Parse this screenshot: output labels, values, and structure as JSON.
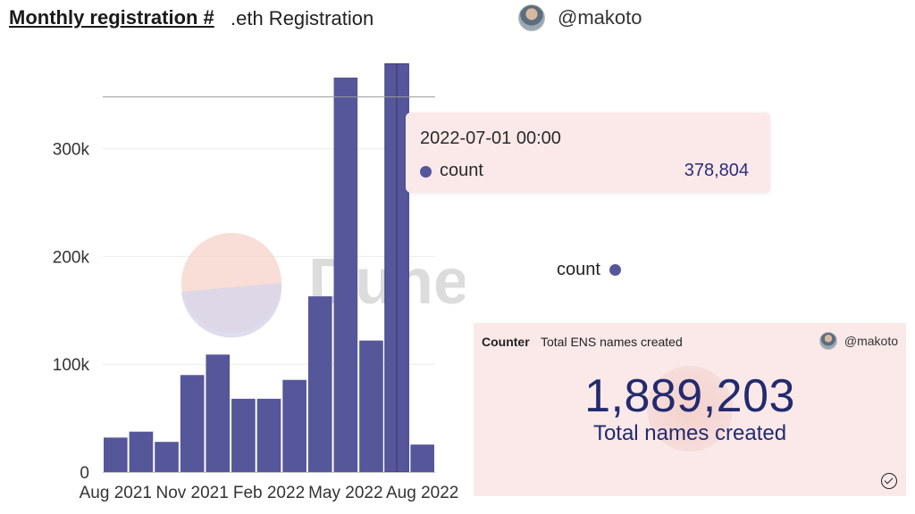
{
  "header": {
    "title": "Monthly registration #",
    "subtitle": ".eth Registration",
    "user": "@makoto"
  },
  "colors": {
    "bar": "#56569a",
    "tooltip_bg": "#fbe9e9",
    "counter_bg": "#fbe9e9",
    "counter_text": "#232b6e"
  },
  "chart_data": {
    "type": "bar",
    "categories": [
      "2021-08",
      "2021-09",
      "2021-10",
      "2021-11",
      "2021-12",
      "2022-01",
      "2022-02",
      "2022-03",
      "2022-04",
      "2022-05",
      "2022-06",
      "2022-07",
      "2022-08"
    ],
    "series": [
      {
        "name": "count",
        "values": [
          32000,
          37500,
          28000,
          90000,
          109000,
          68000,
          68000,
          85500,
          163000,
          366000,
          122000,
          378804,
          25500
        ]
      }
    ],
    "ylim": [
      0,
      380000
    ],
    "yticks": [
      0,
      100000,
      200000,
      300000
    ],
    "ytick_labels": [
      "0",
      "100k",
      "200k",
      "300k"
    ],
    "xtick_labels": [
      {
        "index": 0,
        "label": "Aug 2021"
      },
      {
        "index": 3,
        "label": "Nov 2021"
      },
      {
        "index": 6,
        "label": "Feb 2022"
      },
      {
        "index": 9,
        "label": "May 2022"
      },
      {
        "index": 12,
        "label": "Aug 2022"
      }
    ],
    "highlight_index": 11,
    "reference_line": 348000,
    "grid": true,
    "watermark": "Dune",
    "legend": {
      "label": "count",
      "position": "right"
    }
  },
  "tooltip": {
    "time": "2022-07-01 00:00",
    "label": "count",
    "value": "378,804"
  },
  "counter": {
    "type_label": "Counter",
    "title": "Total ENS names created",
    "user": "@makoto",
    "value": "1,889,203",
    "label": "Total names created"
  }
}
